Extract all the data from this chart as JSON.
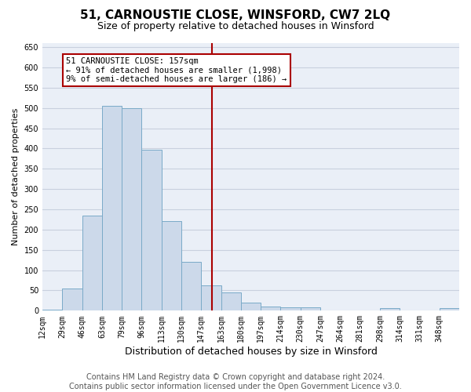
{
  "title": "51, CARNOUSTIE CLOSE, WINSFORD, CW7 2LQ",
  "subtitle": "Size of property relative to detached houses in Winsford",
  "xlabel": "Distribution of detached houses by size in Winsford",
  "ylabel": "Number of detached properties",
  "bin_labels": [
    "12sqm",
    "29sqm",
    "46sqm",
    "63sqm",
    "79sqm",
    "96sqm",
    "113sqm",
    "130sqm",
    "147sqm",
    "163sqm",
    "180sqm",
    "197sqm",
    "214sqm",
    "230sqm",
    "247sqm",
    "264sqm",
    "281sqm",
    "298sqm",
    "314sqm",
    "331sqm",
    "348sqm"
  ],
  "bar_heights": [
    3,
    55,
    235,
    505,
    500,
    397,
    222,
    120,
    62,
    46,
    20,
    10,
    8,
    8,
    0,
    0,
    0,
    7,
    0,
    0,
    7
  ],
  "bar_color": "#ccd9ea",
  "bar_edge_color": "#7aaac8",
  "vline_color": "#aa0000",
  "annotation_text": "51 CARNOUSTIE CLOSE: 157sqm\n← 91% of detached houses are smaller (1,998)\n9% of semi-detached houses are larger (186) →",
  "annotation_box_color": "#aa0000",
  "ylim": [
    0,
    660
  ],
  "yticks": [
    0,
    50,
    100,
    150,
    200,
    250,
    300,
    350,
    400,
    450,
    500,
    550,
    600,
    650
  ],
  "grid_color": "#c8d0de",
  "bg_color": "#eaeff7",
  "footer": "Contains HM Land Registry data © Crown copyright and database right 2024.\nContains public sector information licensed under the Open Government Licence v3.0.",
  "title_fontsize": 11,
  "subtitle_fontsize": 9,
  "xlabel_fontsize": 9,
  "ylabel_fontsize": 8,
  "footer_fontsize": 7,
  "tick_fontsize": 7
}
